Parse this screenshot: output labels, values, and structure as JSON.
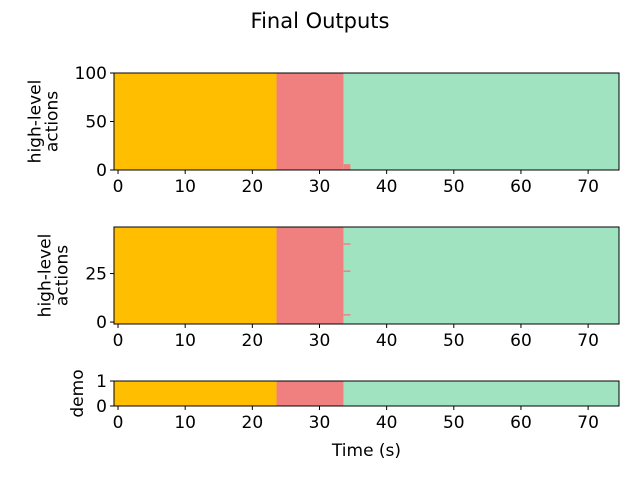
{
  "title": "Final Outputs",
  "colors": {
    "phase_1": "#FFBF00",
    "phase_2": "#F08080",
    "phase_3": "#A0E3C0",
    "axis": "#000000"
  },
  "chart_data": [
    {
      "type": "bar",
      "ylabel": "high-level\nactions",
      "xlim": [
        -0.6,
        74.6
      ],
      "ylim": [
        0,
        100
      ],
      "xticks": [
        0,
        10,
        20,
        30,
        40,
        50,
        60,
        70
      ],
      "yticks": [
        0,
        50,
        100
      ],
      "segments": [
        {
          "x0": -0.6,
          "x1": 23.6,
          "color": "phase_1"
        },
        {
          "x0": 23.6,
          "x1": 33.6,
          "color": "phase_2"
        },
        {
          "x0": 33.6,
          "x1": 74.6,
          "color": "phase_3"
        }
      ],
      "markers": [
        {
          "x0": 33.6,
          "x1": 34.6,
          "y0": 0,
          "y1": 6,
          "color": "phase_2"
        }
      ]
    },
    {
      "type": "bar",
      "ylabel": "high-level\nactions",
      "xlim": [
        -0.6,
        74.6
      ],
      "ylim": [
        -1,
        49
      ],
      "xticks": [
        0,
        10,
        20,
        30,
        40,
        50,
        60,
        70
      ],
      "yticks": [
        0,
        25
      ],
      "segments": [
        {
          "x0": -0.6,
          "x1": 23.6,
          "color": "phase_1"
        },
        {
          "x0": 23.6,
          "x1": 33.6,
          "color": "phase_2"
        },
        {
          "x0": 33.6,
          "x1": 74.6,
          "color": "phase_3"
        }
      ],
      "markers": [
        {
          "x0": 33.6,
          "x1": 34.6,
          "y0": 40,
          "y1": 40.6,
          "color": "phase_2"
        },
        {
          "x0": 33.6,
          "x1": 34.6,
          "y0": 26,
          "y1": 26.6,
          "color": "phase_2"
        },
        {
          "x0": 33.6,
          "x1": 34.6,
          "y0": 3.5,
          "y1": 4.1,
          "color": "phase_2"
        }
      ]
    },
    {
      "type": "bar",
      "ylabel": "demo",
      "xlabel": "Time (s)",
      "xlim": [
        -0.6,
        74.6
      ],
      "ylim": [
        0,
        1
      ],
      "xticks": [
        0,
        10,
        20,
        30,
        40,
        50,
        60,
        70
      ],
      "yticks": [
        0,
        1
      ],
      "segments": [
        {
          "x0": -0.6,
          "x1": 23.6,
          "color": "phase_1"
        },
        {
          "x0": 23.6,
          "x1": 33.6,
          "color": "phase_2"
        },
        {
          "x0": 33.6,
          "x1": 74.6,
          "color": "phase_3"
        }
      ],
      "markers": []
    }
  ]
}
